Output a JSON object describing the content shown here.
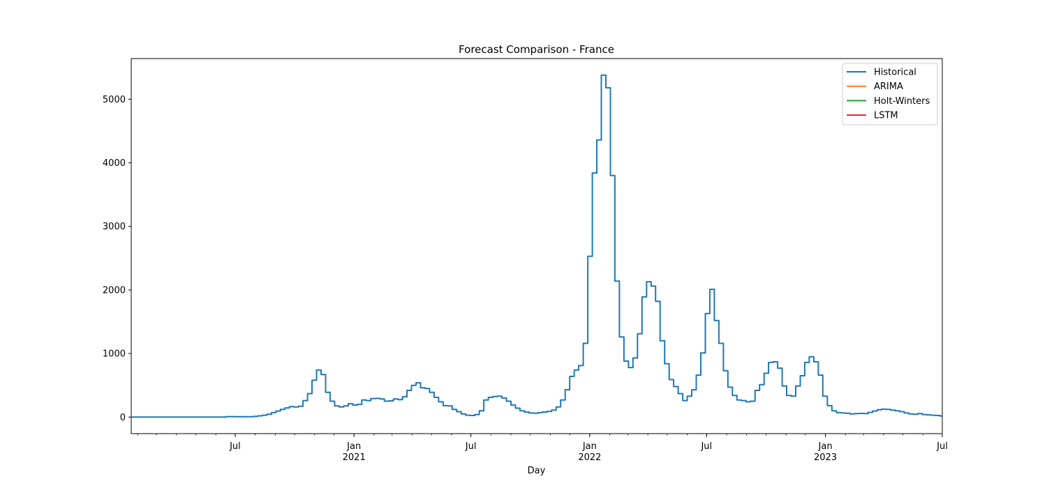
{
  "chart_data": {
    "type": "line",
    "title": "Forecast Comparison - France",
    "xlabel": "Day",
    "ylabel": "",
    "x_axis_type": "date",
    "xlim": [
      "2020-01-22",
      "2023-07-01"
    ],
    "ylim": [
      -260,
      5640
    ],
    "grid": false,
    "legend_position": "top-right",
    "y_ticks": [
      0,
      1000,
      2000,
      3000,
      4000,
      5000
    ],
    "x_ticks": [
      {
        "date": "2020-07-01",
        "label": "Jul",
        "year": ""
      },
      {
        "date": "2021-01-01",
        "label": "Jan",
        "year": "2021"
      },
      {
        "date": "2021-07-01",
        "label": "Jul",
        "year": ""
      },
      {
        "date": "2022-01-01",
        "label": "Jan",
        "year": "2022"
      },
      {
        "date": "2022-07-01",
        "label": "Jul",
        "year": ""
      },
      {
        "date": "2023-01-01",
        "label": "Jan",
        "year": "2023"
      },
      {
        "date": "2023-07-01",
        "label": "Jul",
        "year": ""
      }
    ],
    "series": [
      {
        "name": "Historical",
        "color": "#1f77b4",
        "step": true,
        "points": [
          [
            "2020-01-22",
            0
          ],
          [
            "2020-06-10",
            0
          ],
          [
            "2020-06-17",
            8
          ],
          [
            "2020-07-01",
            5
          ],
          [
            "2020-07-15",
            6
          ],
          [
            "2020-07-29",
            12
          ],
          [
            "2020-08-05",
            20
          ],
          [
            "2020-08-12",
            30
          ],
          [
            "2020-08-19",
            45
          ],
          [
            "2020-08-26",
            70
          ],
          [
            "2020-09-02",
            95
          ],
          [
            "2020-09-09",
            120
          ],
          [
            "2020-09-16",
            145
          ],
          [
            "2020-09-23",
            165
          ],
          [
            "2020-09-30",
            160
          ],
          [
            "2020-10-07",
            170
          ],
          [
            "2020-10-14",
            260
          ],
          [
            "2020-10-21",
            370
          ],
          [
            "2020-10-28",
            580
          ],
          [
            "2020-11-04",
            740
          ],
          [
            "2020-11-11",
            670
          ],
          [
            "2020-11-18",
            390
          ],
          [
            "2020-11-25",
            250
          ],
          [
            "2020-12-02",
            175
          ],
          [
            "2020-12-09",
            160
          ],
          [
            "2020-12-16",
            175
          ],
          [
            "2020-12-23",
            210
          ],
          [
            "2020-12-30",
            190
          ],
          [
            "2021-01-06",
            200
          ],
          [
            "2021-01-13",
            270
          ],
          [
            "2021-01-20",
            260
          ],
          [
            "2021-01-27",
            290
          ],
          [
            "2021-02-03",
            295
          ],
          [
            "2021-02-10",
            285
          ],
          [
            "2021-02-17",
            250
          ],
          [
            "2021-02-24",
            255
          ],
          [
            "2021-03-03",
            285
          ],
          [
            "2021-03-10",
            275
          ],
          [
            "2021-03-17",
            320
          ],
          [
            "2021-03-24",
            420
          ],
          [
            "2021-03-31",
            500
          ],
          [
            "2021-04-07",
            540
          ],
          [
            "2021-04-14",
            460
          ],
          [
            "2021-04-21",
            450
          ],
          [
            "2021-04-28",
            390
          ],
          [
            "2021-05-05",
            310
          ],
          [
            "2021-05-12",
            240
          ],
          [
            "2021-05-19",
            180
          ],
          [
            "2021-05-26",
            175
          ],
          [
            "2021-06-02",
            120
          ],
          [
            "2021-06-09",
            85
          ],
          [
            "2021-06-16",
            50
          ],
          [
            "2021-06-23",
            30
          ],
          [
            "2021-06-30",
            25
          ],
          [
            "2021-07-07",
            40
          ],
          [
            "2021-07-14",
            100
          ],
          [
            "2021-07-21",
            270
          ],
          [
            "2021-07-28",
            310
          ],
          [
            "2021-08-04",
            325
          ],
          [
            "2021-08-11",
            330
          ],
          [
            "2021-08-18",
            300
          ],
          [
            "2021-08-25",
            250
          ],
          [
            "2021-09-01",
            190
          ],
          [
            "2021-09-08",
            140
          ],
          [
            "2021-09-15",
            100
          ],
          [
            "2021-09-22",
            80
          ],
          [
            "2021-09-29",
            65
          ],
          [
            "2021-10-06",
            60
          ],
          [
            "2021-10-13",
            70
          ],
          [
            "2021-10-20",
            80
          ],
          [
            "2021-10-27",
            90
          ],
          [
            "2021-11-03",
            110
          ],
          [
            "2021-11-10",
            160
          ],
          [
            "2021-11-17",
            270
          ],
          [
            "2021-11-24",
            430
          ],
          [
            "2021-12-01",
            640
          ],
          [
            "2021-12-08",
            740
          ],
          [
            "2021-12-15",
            810
          ],
          [
            "2021-12-22",
            1160
          ],
          [
            "2021-12-29",
            2530
          ],
          [
            "2022-01-05",
            3840
          ],
          [
            "2022-01-12",
            4360
          ],
          [
            "2022-01-19",
            5380
          ],
          [
            "2022-01-26",
            5180
          ],
          [
            "2022-02-02",
            3800
          ],
          [
            "2022-02-09",
            2140
          ],
          [
            "2022-02-16",
            1260
          ],
          [
            "2022-02-23",
            880
          ],
          [
            "2022-03-02",
            780
          ],
          [
            "2022-03-09",
            930
          ],
          [
            "2022-03-16",
            1310
          ],
          [
            "2022-03-23",
            1890
          ],
          [
            "2022-03-30",
            2130
          ],
          [
            "2022-04-06",
            2060
          ],
          [
            "2022-04-13",
            1820
          ],
          [
            "2022-04-20",
            1200
          ],
          [
            "2022-04-27",
            840
          ],
          [
            "2022-05-04",
            590
          ],
          [
            "2022-05-11",
            480
          ],
          [
            "2022-05-18",
            370
          ],
          [
            "2022-05-25",
            260
          ],
          [
            "2022-06-01",
            330
          ],
          [
            "2022-06-08",
            430
          ],
          [
            "2022-06-15",
            660
          ],
          [
            "2022-06-22",
            1010
          ],
          [
            "2022-06-29",
            1630
          ],
          [
            "2022-07-06",
            2010
          ],
          [
            "2022-07-13",
            1520
          ],
          [
            "2022-07-20",
            1160
          ],
          [
            "2022-07-27",
            730
          ],
          [
            "2022-08-03",
            470
          ],
          [
            "2022-08-10",
            340
          ],
          [
            "2022-08-17",
            270
          ],
          [
            "2022-08-24",
            260
          ],
          [
            "2022-08-31",
            240
          ],
          [
            "2022-09-07",
            250
          ],
          [
            "2022-09-14",
            420
          ],
          [
            "2022-09-21",
            510
          ],
          [
            "2022-09-28",
            690
          ],
          [
            "2022-10-05",
            860
          ],
          [
            "2022-10-12",
            870
          ],
          [
            "2022-10-19",
            770
          ],
          [
            "2022-10-26",
            490
          ],
          [
            "2022-11-02",
            340
          ],
          [
            "2022-11-09",
            330
          ],
          [
            "2022-11-16",
            490
          ],
          [
            "2022-11-23",
            650
          ],
          [
            "2022-11-30",
            860
          ],
          [
            "2022-12-07",
            950
          ],
          [
            "2022-12-14",
            870
          ],
          [
            "2022-12-21",
            660
          ],
          [
            "2022-12-28",
            330
          ],
          [
            "2023-01-04",
            180
          ],
          [
            "2023-01-11",
            100
          ],
          [
            "2023-01-18",
            70
          ],
          [
            "2023-01-25",
            65
          ],
          [
            "2023-02-01",
            60
          ],
          [
            "2023-02-08",
            50
          ],
          [
            "2023-02-15",
            55
          ],
          [
            "2023-02-22",
            58
          ],
          [
            "2023-03-01",
            55
          ],
          [
            "2023-03-08",
            75
          ],
          [
            "2023-03-15",
            95
          ],
          [
            "2023-03-22",
            115
          ],
          [
            "2023-03-29",
            125
          ],
          [
            "2023-04-05",
            120
          ],
          [
            "2023-04-12",
            110
          ],
          [
            "2023-04-19",
            100
          ],
          [
            "2023-04-26",
            85
          ],
          [
            "2023-05-03",
            65
          ],
          [
            "2023-05-10",
            50
          ],
          [
            "2023-05-17",
            45
          ],
          [
            "2023-05-24",
            55
          ],
          [
            "2023-05-31",
            40
          ],
          [
            "2023-06-07",
            35
          ],
          [
            "2023-06-14",
            30
          ],
          [
            "2023-06-21",
            25
          ],
          [
            "2023-06-28",
            15
          ],
          [
            "2023-07-01",
            15
          ]
        ]
      },
      {
        "name": "ARIMA",
        "color": "#ff7f0e",
        "points": []
      },
      {
        "name": "Holt-Winters",
        "color": "#2ca02c",
        "points": []
      },
      {
        "name": "LSTM",
        "color": "#d62728",
        "points": []
      }
    ]
  }
}
